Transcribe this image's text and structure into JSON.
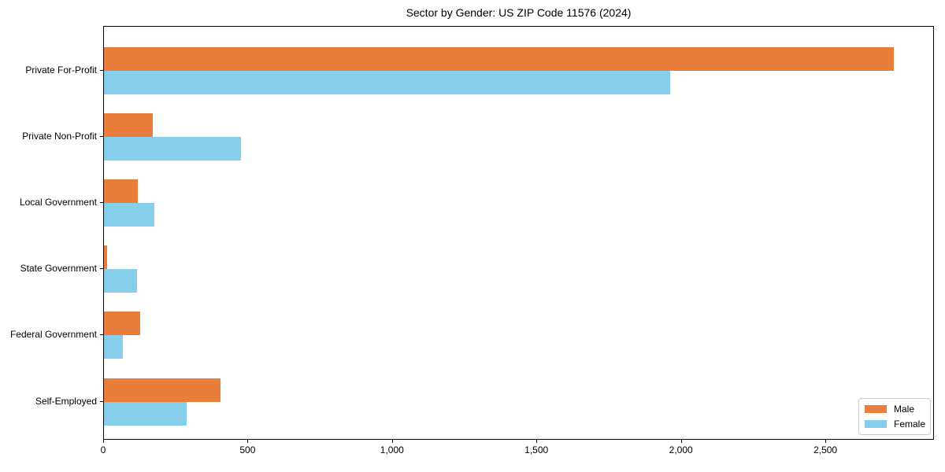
{
  "title": "Sector by Gender: US ZIP Code 11576 (2024)",
  "chart_data": {
    "type": "bar",
    "orientation": "horizontal",
    "title": "Sector by Gender: US ZIP Code 11576 (2024)",
    "categories": [
      "Private For-Profit",
      "Private Non-Profit",
      "Local Government",
      "State Government",
      "Federal Government",
      "Self-Employed"
    ],
    "series": [
      {
        "name": "Male",
        "color": "#E87D3C",
        "values": [
          2735,
          170,
          118,
          10,
          126,
          404
        ]
      },
      {
        "name": "Female",
        "color": "#87CEEB",
        "values": [
          1960,
          474,
          175,
          115,
          65,
          287
        ]
      }
    ],
    "xlabel": "",
    "ylabel": "",
    "xlim": [
      0,
      2876
    ],
    "x_ticks": [
      {
        "value": 0,
        "label": "0"
      },
      {
        "value": 500,
        "label": "500"
      },
      {
        "value": 1000,
        "label": "1,000"
      },
      {
        "value": 1500,
        "label": "1,500"
      },
      {
        "value": 2000,
        "label": "2,000"
      },
      {
        "value": 2500,
        "label": "2,500"
      }
    ],
    "grid": false,
    "legend": {
      "position": "lower right"
    }
  }
}
